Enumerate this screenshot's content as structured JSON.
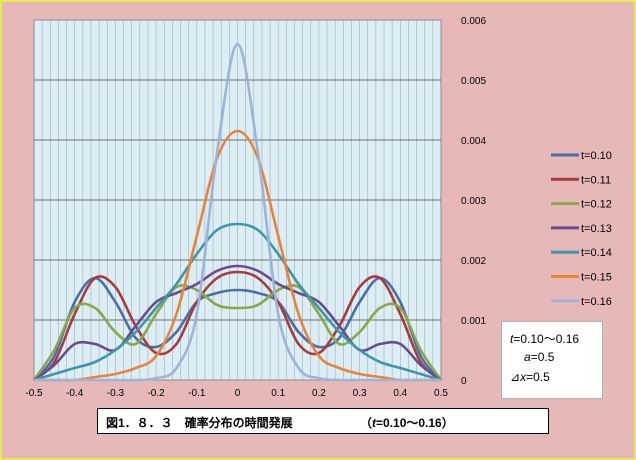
{
  "chart_data": {
    "type": "line",
    "title": "",
    "xlabel": "",
    "ylabel": "",
    "xlim": [
      -0.5,
      0.5
    ],
    "ylim": [
      0,
      0.006
    ],
    "x_ticks": [
      "-0.5",
      "-0.4",
      "-0.3",
      "-0.2",
      "-0.1",
      "0",
      "0.1",
      "0.2",
      "0.3",
      "0.4",
      "0.5"
    ],
    "y_ticks": [
      "0",
      "0.001",
      "0.002",
      "0.003",
      "0.004",
      "0.005",
      "0.006"
    ],
    "y_axis_side": "right",
    "grid": "vertical minor lines and horizontal major lines",
    "legend_position": "right",
    "x": [
      -0.5,
      -0.45,
      -0.4,
      -0.35,
      -0.3,
      -0.25,
      -0.2,
      -0.15,
      -0.1,
      -0.05,
      0,
      0.05,
      0.1,
      0.15,
      0.2,
      0.25,
      0.3,
      0.35,
      0.4,
      0.45,
      0.5
    ],
    "series": [
      {
        "name": "t=0.10",
        "color": "#4a6fa8",
        "values": [
          0.0,
          0.0004,
          0.0013,
          0.0017,
          0.0013,
          0.0007,
          0.00055,
          0.0008,
          0.0013,
          0.00145,
          0.0015,
          0.00145,
          0.0013,
          0.0008,
          0.00055,
          0.0007,
          0.0013,
          0.0017,
          0.0013,
          0.0004,
          0.0
        ]
      },
      {
        "name": "t=0.11",
        "color": "#a83c3c",
        "values": [
          0.0,
          0.0003,
          0.0011,
          0.0017,
          0.00155,
          0.0009,
          0.00045,
          0.0006,
          0.0013,
          0.0017,
          0.0018,
          0.0017,
          0.0013,
          0.0006,
          0.00045,
          0.0009,
          0.00155,
          0.0017,
          0.0011,
          0.0003,
          0.0
        ]
      },
      {
        "name": "t=0.12",
        "color": "#8aa84a",
        "values": [
          0.0,
          0.0005,
          0.0012,
          0.0012,
          0.0008,
          0.0006,
          0.0011,
          0.00155,
          0.0015,
          0.00125,
          0.0012,
          0.00125,
          0.0015,
          0.00155,
          0.0011,
          0.0006,
          0.0008,
          0.0012,
          0.0012,
          0.0005,
          0.0
        ]
      },
      {
        "name": "t=0.13",
        "color": "#6a4c8c",
        "values": [
          0.0,
          0.00025,
          0.0006,
          0.0006,
          0.0005,
          0.0009,
          0.0013,
          0.00145,
          0.0016,
          0.00182,
          0.0019,
          0.00182,
          0.0016,
          0.00145,
          0.0013,
          0.0009,
          0.0005,
          0.0006,
          0.0006,
          0.00025,
          0.0
        ]
      },
      {
        "name": "t=0.14",
        "color": "#3e96aa",
        "values": [
          0.0,
          0.0001,
          0.0002,
          0.0003,
          0.0005,
          0.0008,
          0.0012,
          0.0016,
          0.0021,
          0.0025,
          0.0026,
          0.0025,
          0.0021,
          0.0016,
          0.0012,
          0.0008,
          0.0005,
          0.0003,
          0.0002,
          0.0001,
          0.0
        ]
      },
      {
        "name": "t=0.15",
        "color": "#e8843a",
        "values": [
          0.0,
          0.0,
          0.0,
          5e-05,
          0.0001,
          0.0002,
          0.0004,
          0.0011,
          0.0024,
          0.0037,
          0.00415,
          0.0037,
          0.0024,
          0.0011,
          0.0004,
          0.0002,
          0.0001,
          5e-05,
          0.0,
          0.0,
          0.0
        ]
      },
      {
        "name": "t=0.16",
        "color": "#9db4d8",
        "values": [
          0.0,
          0.0,
          0.0,
          0.0,
          0.0,
          0.0,
          3e-05,
          0.0002,
          0.0011,
          0.0038,
          0.0056,
          0.0038,
          0.0011,
          0.0002,
          3e-05,
          0.0,
          0.0,
          0.0,
          0.0,
          0.0,
          0.0
        ]
      }
    ]
  },
  "params": {
    "t_label": "t",
    "t_value": "=0.10～0.16",
    "a_label": "a",
    "a_value": "=0.5",
    "dx_symbol": "⊿",
    "dx_label": "x",
    "dx_value": "=0.5"
  },
  "caption": {
    "main": "図1．８．３　確率分布の時間発展",
    "paren_open": "（",
    "t_label": "t",
    "t_value": "=0.10～0.16）"
  }
}
